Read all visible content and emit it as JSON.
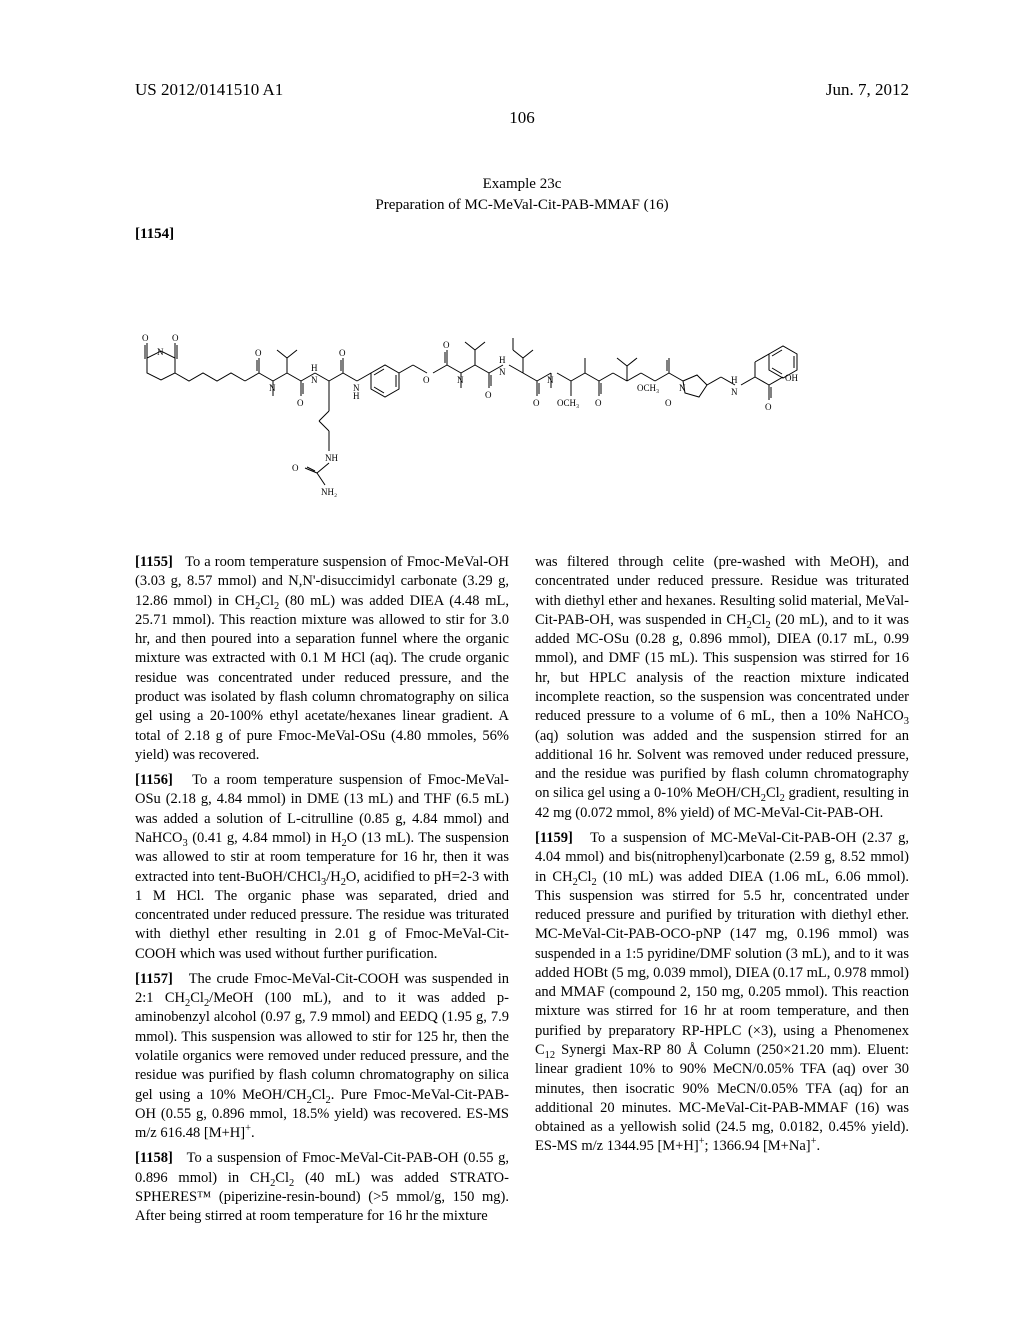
{
  "header": {
    "pub_number": "US 2012/0141510 A1",
    "pub_date": "Jun. 7, 2012"
  },
  "page_number": "106",
  "example": {
    "label": "Example 23c",
    "title": "Preparation of MC-MeVal-Cit-PAB-MMAF (16)",
    "para_ref": "[1154]"
  },
  "structure": {
    "svg_viewbox": "0 0 770 250",
    "description": "Chemical structure of MC-MeVal-Cit-PAB-MMAF (16)"
  },
  "paragraphs": {
    "p1155": {
      "num": "[1155]",
      "text_html": "To a room temperature suspension of Fmoc-MeVal-OH (3.03 g, 8.57 mmol) and N,N'-disuccimidyl carbonate (3.29 g, 12.86 mmol) in CH<sub>2</sub>Cl<sub>2</sub> (80 mL) was added DIEA (4.48 mL, 25.71 mmol). This reaction mixture was allowed to stir for 3.0 hr, and then poured into a separation funnel where the organic mixture was extracted with 0.1 M HCl (aq). The crude organic residue was concentrated under reduced pressure, and the product was isolated by flash column chromatography on silica gel using a 20-100% ethyl acetate/hexanes linear gradient. A total of 2.18 g of pure Fmoc-MeVal-OSu (4.80 mmoles, 56% yield) was recovered."
    },
    "p1156": {
      "num": "[1156]",
      "text_html": "To a room temperature suspension of Fmoc-MeVal-OSu (2.18 g, 4.84 mmol) in DME (13 mL) and THF (6.5 mL) was added a solution of L-citrulline (0.85 g, 4.84 mmol) and NaHCO<sub>3</sub> (0.41 g, 4.84 mmol) in H<sub>2</sub>O (13 mL). The suspension was allowed to stir at room temperature for 16 hr, then it was extracted into tent-BuOH/CHCl<sub>3</sub>/H<sub>2</sub>O, acidified to pH=2-3 with 1 M HCl. The organic phase was separated, dried and concentrated under reduced pressure. The residue was triturated with diethyl ether resulting in 2.01 g of Fmoc-MeVal-Cit-COOH which was used without further purification."
    },
    "p1157": {
      "num": "[1157]",
      "text_html": "The crude Fmoc-MeVal-Cit-COOH was suspended in 2:1 CH<sub>2</sub>Cl<sub>2</sub>/MeOH (100 mL), and to it was added p-aminobenzyl alcohol (0.97 g, 7.9 mmol) and EEDQ (1.95 g, 7.9 mmol). This suspension was allowed to stir for 125 hr, then the volatile organics were removed under reduced pressure, and the residue was purified by flash column chromatography on silica gel using a 10% MeOH/CH<sub>2</sub>Cl<sub>2</sub>. Pure Fmoc-MeVal-Cit-PAB-OH (0.55 g, 0.896 mmol, 18.5% yield) was recovered. ES-MS m/z 616.48 [M+H]<sup>+</sup>."
    },
    "p1158": {
      "num": "[1158]",
      "text_html": "To a suspension of Fmoc-MeVal-Cit-PAB-OH (0.55 g, 0.896 mmol) in CH<sub>2</sub>Cl<sub>2</sub> (40 mL) was added STRATO-SPHERES™ (piperizine-resin-bound) (>5 mmol/g, 150 mg). After being stirred at room temperature for 16 hr the mixture"
    },
    "p1158b": {
      "text_html": "was filtered through celite (pre-washed with MeOH), and concentrated under reduced pressure. Residue was triturated with diethyl ether and hexanes. Resulting solid material, MeVal-Cit-PAB-OH, was suspended in CH<sub>2</sub>Cl<sub>2</sub> (20 mL), and to it was added MC-OSu (0.28 g, 0.896 mmol), DIEA (0.17 mL, 0.99 mmol), and DMF (15 mL). This suspension was stirred for 16 hr, but HPLC analysis of the reaction mixture indicated incomplete reaction, so the suspension was concentrated under reduced pressure to a volume of 6 mL, then a 10% NaHCO<sub>3</sub> (aq) solution was added and the suspension stirred for an additional 16 hr. Solvent was removed under reduced pressure, and the residue was purified by flash column chromatography on silica gel using a 0-10% MeOH/CH<sub>2</sub>Cl<sub>2</sub> gradient, resulting in 42 mg (0.072 mmol, 8% yield) of MC-MeVal-Cit-PAB-OH."
    },
    "p1159": {
      "num": "[1159]",
      "text_html": "To a suspension of MC-MeVal-Cit-PAB-OH (2.37 g, 4.04 mmol) and bis(nitrophenyl)carbonate (2.59 g, 8.52 mmol) in CH<sub>2</sub>Cl<sub>2</sub> (10 mL) was added DIEA (1.06 mL, 6.06 mmol). This suspension was stirred for 5.5 hr, concentrated under reduced pressure and purified by trituration with diethyl ether. MC-MeVal-Cit-PAB-OCO-pNP (147 mg, 0.196 mmol) was suspended in a 1:5 pyridine/DMF solution (3 mL), and to it was added HOBt (5 mg, 0.039 mmol), DIEA (0.17 mL, 0.978 mmol) and MMAF (compound 2, 150 mg, 0.205 mmol). This reaction mixture was stirred for 16 hr at room temperature, and then purified by preparatory RP-HPLC (×3), using a Phenomenex C<sub>12</sub> Synergi Max-RP 80 Å Column (250×21.20 mm). Eluent: linear gradient 10% to 90% MeCN/0.05% TFA (aq) over 30 minutes, then isocratic 90% MeCN/0.05% TFA (aq) for an additional 20 minutes. MC-MeVal-Cit-PAB-MMAF (16) was obtained as a yellowish solid (24.5 mg, 0.0182, 0.45% yield). ES-MS m/z 1344.95 [M+H]<sup>+</sup>; 1366.94 [M+Na]<sup>+</sup>."
    }
  }
}
